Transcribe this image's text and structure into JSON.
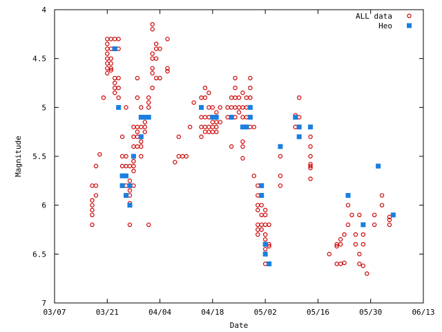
{
  "chart_data": {
    "type": "scatter",
    "title": "",
    "xlabel": "Date",
    "ylabel": "Magnitude",
    "x_tick_labels": [
      "03/07",
      "03/21",
      "04/04",
      "04/18",
      "05/02",
      "05/16",
      "05/30",
      "06/13"
    ],
    "y_tick_labels": [
      "4",
      "4.5",
      "5",
      "5.5",
      "6",
      "6.5",
      "7"
    ],
    "xlim": [
      "03/07",
      "06/13"
    ],
    "ylim": [
      4,
      7
    ],
    "y_axis_inverted": true,
    "grid": false,
    "legend_position": "top-right",
    "series": [
      {
        "name": "ALL data",
        "marker": "open-circle",
        "color": "#cc0000",
        "points": [
          [
            "03/17",
            6.2
          ],
          [
            "03/17",
            6.1
          ],
          [
            "03/17",
            6.05
          ],
          [
            "03/17",
            6.0
          ],
          [
            "03/17",
            5.95
          ],
          [
            "03/17",
            5.8
          ],
          [
            "03/18",
            5.8
          ],
          [
            "03/18",
            5.6
          ],
          [
            "03/18",
            5.9
          ],
          [
            "03/19",
            5.48
          ],
          [
            "03/20",
            4.9
          ],
          [
            "03/21",
            4.3
          ],
          [
            "03/21",
            4.35
          ],
          [
            "03/21",
            4.4
          ],
          [
            "03/21",
            4.45
          ],
          [
            "03/21",
            4.5
          ],
          [
            "03/21",
            4.55
          ],
          [
            "03/21",
            4.6
          ],
          [
            "03/21",
            4.65
          ],
          [
            "03/22",
            4.3
          ],
          [
            "03/22",
            4.4
          ],
          [
            "03/22",
            4.5
          ],
          [
            "03/22",
            4.55
          ],
          [
            "03/22",
            4.6
          ],
          [
            "03/22",
            4.62
          ],
          [
            "03/23",
            4.3
          ],
          [
            "03/23",
            4.4
          ],
          [
            "03/23",
            4.7
          ],
          [
            "03/23",
            4.75
          ],
          [
            "03/23",
            4.8
          ],
          [
            "03/23",
            4.85
          ],
          [
            "03/24",
            4.3
          ],
          [
            "03/24",
            4.4
          ],
          [
            "03/24",
            4.7
          ],
          [
            "03/24",
            4.8
          ],
          [
            "03/24",
            4.9
          ],
          [
            "03/24",
            5.0
          ],
          [
            "03/25",
            5.3
          ],
          [
            "03/25",
            5.5
          ],
          [
            "03/25",
            5.6
          ],
          [
            "03/25",
            5.7
          ],
          [
            "03/25",
            5.8
          ],
          [
            "03/26",
            5.0
          ],
          [
            "03/26",
            5.5
          ],
          [
            "03/26",
            5.6
          ],
          [
            "03/26",
            5.7
          ],
          [
            "03/26",
            5.8
          ],
          [
            "03/26",
            5.9
          ],
          [
            "03/27",
            5.6
          ],
          [
            "03/27",
            5.75
          ],
          [
            "03/27",
            5.85
          ],
          [
            "03/27",
            5.9
          ],
          [
            "03/27",
            5.98
          ],
          [
            "03/27",
            6.2
          ],
          [
            "03/28",
            5.2
          ],
          [
            "03/28",
            5.3
          ],
          [
            "03/28",
            5.4
          ],
          [
            "03/28",
            5.5
          ],
          [
            "03/28",
            5.55
          ],
          [
            "03/28",
            5.6
          ],
          [
            "03/28",
            5.65
          ],
          [
            "03/28",
            5.8
          ],
          [
            "03/29",
            4.9
          ],
          [
            "03/29",
            4.7
          ],
          [
            "03/29",
            5.2
          ],
          [
            "03/29",
            5.25
          ],
          [
            "03/29",
            5.3
          ],
          [
            "03/29",
            5.4
          ],
          [
            "03/30",
            5.0
          ],
          [
            "03/30",
            5.1
          ],
          [
            "03/30",
            5.2
          ],
          [
            "03/30",
            5.3
          ],
          [
            "03/30",
            5.35
          ],
          [
            "03/30",
            5.4
          ],
          [
            "03/30",
            5.5
          ],
          [
            "03/31",
            5.1
          ],
          [
            "03/31",
            5.15
          ],
          [
            "03/31",
            5.2
          ],
          [
            "03/31",
            5.25
          ],
          [
            "04/01",
            4.9
          ],
          [
            "04/01",
            4.95
          ],
          [
            "04/01",
            5.0
          ],
          [
            "04/01",
            6.2
          ],
          [
            "04/02",
            4.15
          ],
          [
            "04/02",
            4.2
          ],
          [
            "04/02",
            4.45
          ],
          [
            "04/02",
            4.5
          ],
          [
            "04/02",
            4.6
          ],
          [
            "04/02",
            4.65
          ],
          [
            "04/02",
            4.8
          ],
          [
            "04/03",
            4.35
          ],
          [
            "04/03",
            4.4
          ],
          [
            "04/03",
            4.5
          ],
          [
            "04/03",
            4.7
          ],
          [
            "04/04",
            4.4
          ],
          [
            "04/04",
            4.7
          ],
          [
            "04/06",
            4.3
          ],
          [
            "04/06",
            4.6
          ],
          [
            "04/06",
            4.63
          ],
          [
            "04/08",
            5.56
          ],
          [
            "04/09",
            5.3
          ],
          [
            "04/09",
            5.5
          ],
          [
            "04/10",
            5.5
          ],
          [
            "04/11",
            5.5
          ],
          [
            "04/12",
            5.2
          ],
          [
            "04/13",
            4.95
          ],
          [
            "04/15",
            4.9
          ],
          [
            "04/15",
            5.0
          ],
          [
            "04/15",
            5.1
          ],
          [
            "04/15",
            5.2
          ],
          [
            "04/15",
            5.3
          ],
          [
            "04/16",
            4.8
          ],
          [
            "04/16",
            4.9
          ],
          [
            "04/16",
            5.1
          ],
          [
            "04/16",
            5.2
          ],
          [
            "04/16",
            5.25
          ],
          [
            "04/17",
            4.85
          ],
          [
            "04/17",
            5.0
          ],
          [
            "04/17",
            5.1
          ],
          [
            "04/17",
            5.2
          ],
          [
            "04/17",
            5.25
          ],
          [
            "04/18",
            5.0
          ],
          [
            "04/18",
            5.15
          ],
          [
            "04/18",
            5.2
          ],
          [
            "04/18",
            5.25
          ],
          [
            "04/19",
            5.05
          ],
          [
            "04/19",
            5.15
          ],
          [
            "04/19",
            5.2
          ],
          [
            "04/19",
            5.25
          ],
          [
            "04/20",
            5.0
          ],
          [
            "04/20",
            5.15
          ],
          [
            "04/22",
            5.0
          ],
          [
            "04/22",
            5.1
          ],
          [
            "04/23",
            4.9
          ],
          [
            "04/23",
            5.0
          ],
          [
            "04/23",
            5.1
          ],
          [
            "04/23",
            5.4
          ],
          [
            "04/24",
            4.7
          ],
          [
            "04/24",
            4.8
          ],
          [
            "04/24",
            4.9
          ],
          [
            "04/24",
            5.0
          ],
          [
            "04/24",
            5.1
          ],
          [
            "04/25",
            4.9
          ],
          [
            "04/25",
            5.0
          ],
          [
            "04/25",
            5.05
          ],
          [
            "04/26",
            4.85
          ],
          [
            "04/26",
            5.0
          ],
          [
            "04/26",
            5.1
          ],
          [
            "04/26",
            5.2
          ],
          [
            "04/26",
            5.35
          ],
          [
            "04/26",
            5.4
          ],
          [
            "04/26",
            5.52
          ],
          [
            "04/27",
            4.9
          ],
          [
            "04/27",
            5.0
          ],
          [
            "04/27",
            5.1
          ],
          [
            "04/27",
            5.2
          ],
          [
            "04/28",
            4.7
          ],
          [
            "04/28",
            4.8
          ],
          [
            "04/28",
            4.9
          ],
          [
            "04/28",
            5.0
          ],
          [
            "04/28",
            5.1
          ],
          [
            "04/28",
            5.2
          ],
          [
            "04/29",
            5.2
          ],
          [
            "04/29",
            5.7
          ],
          [
            "04/30",
            5.8
          ],
          [
            "04/30",
            5.9
          ],
          [
            "04/30",
            6.0
          ],
          [
            "04/30",
            6.05
          ],
          [
            "04/30",
            6.2
          ],
          [
            "04/30",
            6.25
          ],
          [
            "04/30",
            6.3
          ],
          [
            "05/01",
            5.8
          ],
          [
            "05/01",
            5.9
          ],
          [
            "05/01",
            6.0
          ],
          [
            "05/01",
            6.1
          ],
          [
            "05/01",
            6.2
          ],
          [
            "05/01",
            6.25
          ],
          [
            "05/02",
            6.05
          ],
          [
            "05/02",
            6.1
          ],
          [
            "05/02",
            6.2
          ],
          [
            "05/02",
            6.3
          ],
          [
            "05/02",
            6.35
          ],
          [
            "05/02",
            6.45
          ],
          [
            "05/02",
            6.6
          ],
          [
            "05/03",
            6.2
          ],
          [
            "05/03",
            6.4
          ],
          [
            "05/03",
            6.42
          ],
          [
            "05/06",
            5.4
          ],
          [
            "05/06",
            5.5
          ],
          [
            "05/06",
            5.7
          ],
          [
            "05/06",
            5.8
          ],
          [
            "05/10",
            5.08
          ],
          [
            "05/10",
            5.2
          ],
          [
            "05/11",
            4.9
          ],
          [
            "05/11",
            5.1
          ],
          [
            "05/11",
            5.2
          ],
          [
            "05/14",
            5.3
          ],
          [
            "05/14",
            5.4
          ],
          [
            "05/14",
            5.5
          ],
          [
            "05/14",
            5.58
          ],
          [
            "05/14",
            5.6
          ],
          [
            "05/14",
            5.62
          ],
          [
            "05/14",
            5.73
          ],
          [
            "05/19",
            6.5
          ],
          [
            "05/21",
            6.4
          ],
          [
            "05/21",
            6.42
          ],
          [
            "05/21",
            6.6
          ],
          [
            "05/22",
            6.35
          ],
          [
            "05/22",
            6.4
          ],
          [
            "05/22",
            6.6
          ],
          [
            "05/23",
            6.3
          ],
          [
            "05/23",
            6.59
          ],
          [
            "05/24",
            6.2
          ],
          [
            "05/24",
            6.0
          ],
          [
            "05/25",
            6.1
          ],
          [
            "05/26",
            6.3
          ],
          [
            "05/26",
            6.4
          ],
          [
            "05/27",
            6.1
          ],
          [
            "05/27",
            6.5
          ],
          [
            "05/27",
            6.6
          ],
          [
            "05/28",
            6.3
          ],
          [
            "05/28",
            6.4
          ],
          [
            "05/28",
            6.62
          ],
          [
            "05/29",
            6.7
          ],
          [
            "05/31",
            6.1
          ],
          [
            "05/31",
            6.2
          ],
          [
            "06/02",
            5.9
          ],
          [
            "06/02",
            6.0
          ],
          [
            "06/04",
            6.15
          ],
          [
            "06/04",
            6.2
          ],
          [
            "06/04",
            6.12
          ]
        ]
      },
      {
        "name": "Heo",
        "marker": "filled-square",
        "color": "#1a7fe0",
        "points": [
          [
            "03/23",
            4.4
          ],
          [
            "03/24",
            5.0
          ],
          [
            "03/25",
            5.7
          ],
          [
            "03/25",
            5.8
          ],
          [
            "03/26",
            5.7
          ],
          [
            "03/26",
            5.9
          ],
          [
            "03/27",
            6.0
          ],
          [
            "03/27",
            5.8
          ],
          [
            "03/28",
            5.5
          ],
          [
            "03/30",
            5.1
          ],
          [
            "03/30",
            5.3
          ],
          [
            "03/31",
            5.1
          ],
          [
            "04/01",
            5.1
          ],
          [
            "04/15",
            5.0
          ],
          [
            "04/18",
            5.1
          ],
          [
            "04/19",
            5.1
          ],
          [
            "04/23",
            5.1
          ],
          [
            "04/26",
            5.2
          ],
          [
            "04/27",
            5.2
          ],
          [
            "04/28",
            5.0
          ],
          [
            "04/28",
            5.1
          ],
          [
            "05/01",
            5.8
          ],
          [
            "05/01",
            5.9
          ],
          [
            "05/02",
            6.4
          ],
          [
            "05/02",
            6.5
          ],
          [
            "05/03",
            6.6
          ],
          [
            "05/06",
            5.4
          ],
          [
            "05/10",
            5.1
          ],
          [
            "05/11",
            5.2
          ],
          [
            "05/11",
            5.3
          ],
          [
            "05/14",
            5.2
          ],
          [
            "05/24",
            5.9
          ],
          [
            "05/28",
            6.2
          ],
          [
            "06/01",
            5.6
          ],
          [
            "06/05",
            6.1
          ]
        ]
      }
    ]
  }
}
